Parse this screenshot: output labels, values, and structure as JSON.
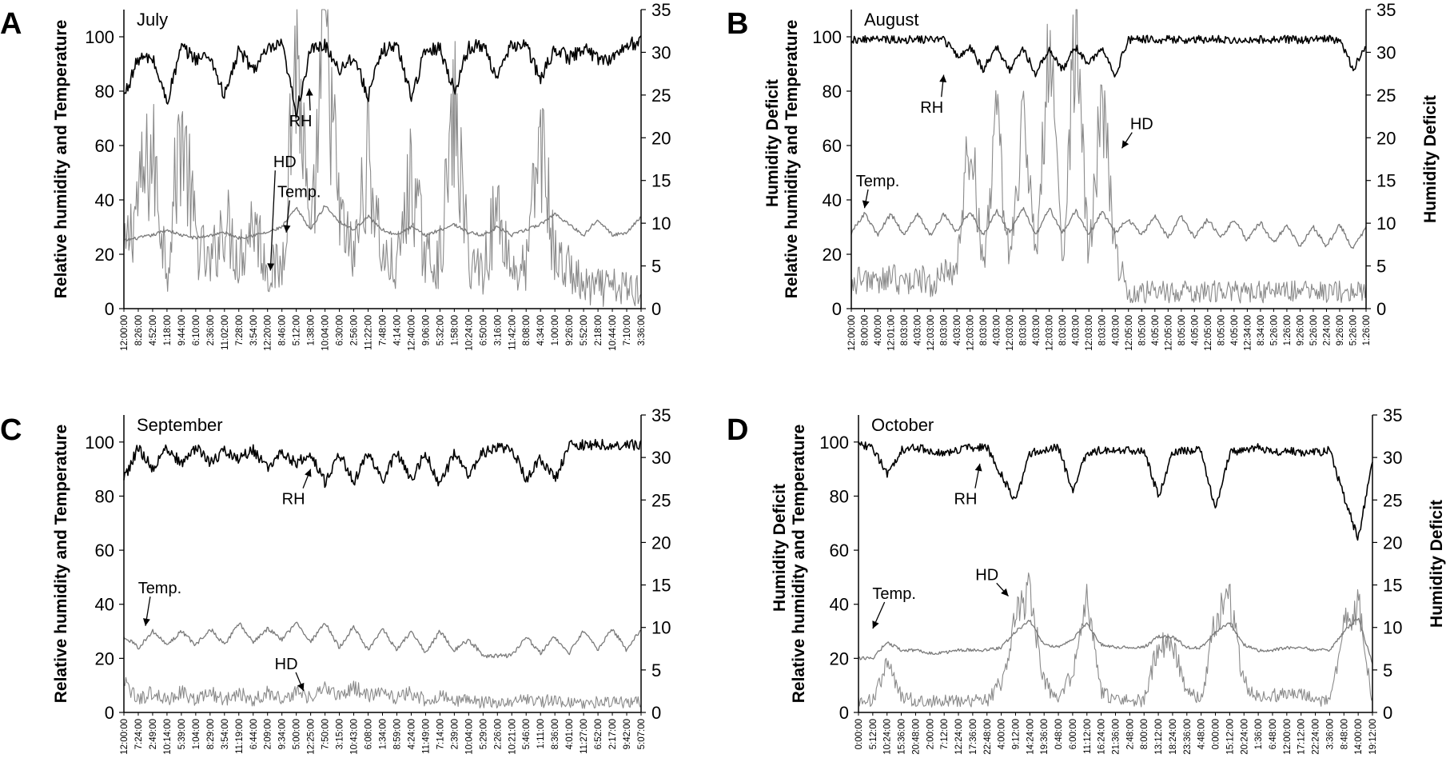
{
  "colors": {
    "rh": "#000000",
    "temp": "#7a7a7a",
    "hd": "#8a8a8a",
    "axis": "#000000"
  },
  "chart_data": [
    {
      "type": "line",
      "panel_letter": "A",
      "title": "July",
      "ylabel": "Relative humidity and Temperature",
      "y2label": "",
      "ylim": [
        0,
        110
      ],
      "y2lim": [
        0,
        35
      ],
      "yticks": [
        "0",
        "20",
        "40",
        "60",
        "80",
        "100"
      ],
      "y2ticks": [
        "0",
        "5",
        "10",
        "15",
        "20",
        "25",
        "30",
        "35"
      ],
      "x_labels": [
        "12:00:00",
        "8:26:00",
        "4:52:00",
        "1:18:00",
        "9:44:00",
        "6:10:00",
        "2:36:00",
        "11:02:00",
        "7:28:00",
        "3:54:00",
        "12:20:00",
        "8:46:00",
        "5:12:00",
        "1:38:00",
        "10:04:00",
        "6:30:00",
        "2:56:00",
        "11:22:00",
        "7:48:00",
        "4:14:00",
        "12:40:00",
        "9:06:00",
        "5:32:00",
        "1:58:00",
        "10:24:00",
        "6:50:00",
        "3:16:00",
        "11:42:00",
        "8:08:00",
        "4:34:00",
        "1:00:00",
        "9:26:00",
        "5:52:00",
        "2:18:00",
        "10:44:00",
        "7:10:00",
        "3:36:00"
      ],
      "annotations": [
        {
          "text": "RH",
          "x": 12.3,
          "y": 67,
          "arrow_x": 12.9,
          "arrow_y": 81
        },
        {
          "text": "HD",
          "x": 11.2,
          "y": 52,
          "arrow_x": 10.2,
          "arrow_y": 14
        },
        {
          "text": "Temp.",
          "x": 12.2,
          "y": 41,
          "arrow_x": 11.3,
          "arrow_y": 28
        }
      ],
      "series": [
        {
          "name": "RH",
          "axis": "left",
          "base": [
            78,
            92,
            92,
            76,
            96,
            92,
            93,
            78,
            95,
            88,
            95,
            97,
            72,
            95,
            97,
            88,
            93,
            78,
            95,
            97,
            78,
            95,
            96,
            80,
            96,
            97,
            85,
            97,
            97,
            84,
            96,
            92,
            96,
            92,
            92,
            97,
            98
          ],
          "noise": 2.5
        },
        {
          "name": "Temp.",
          "axis": "left",
          "base": [
            25,
            26,
            27,
            29,
            27,
            26,
            27,
            28,
            26,
            27,
            28,
            30,
            37,
            29,
            38,
            32,
            29,
            34,
            29,
            27,
            30,
            27,
            29,
            31,
            28,
            27,
            30,
            27,
            29,
            31,
            35,
            31,
            27,
            33,
            27,
            28,
            34
          ],
          "noise": 0.6
        },
        {
          "name": "HD",
          "axis": "right",
          "base": [
            4,
            10,
            14,
            3,
            17,
            6,
            3,
            8,
            4,
            8,
            3,
            3,
            25,
            4,
            27,
            8,
            4,
            14,
            4,
            3,
            12,
            4,
            4,
            18,
            4,
            3,
            9,
            3,
            3,
            16,
            4,
            3,
            1.2,
            1.2,
            1.2,
            1.2,
            1.2
          ],
          "noise": 4.5
        }
      ]
    },
    {
      "type": "line",
      "panel_letter": "B",
      "title": "August",
      "ylabel": "Relative humidity and Temperature",
      "ylabel2": "Humidity Deficit",
      "y2label": "Humidity Deficit",
      "ylim": [
        0,
        110
      ],
      "y2lim": [
        0,
        35
      ],
      "yticks": [
        "0",
        "20",
        "40",
        "60",
        "80",
        "100"
      ],
      "y2ticks": [
        "0",
        "5",
        "10",
        "15",
        "20",
        "25",
        "30",
        "35"
      ],
      "x_labels": [
        "12:00:00",
        "8:00:00",
        "4:00:00",
        "12:01:00",
        "8:03:00",
        "4:03:00",
        "12:03:00",
        "8:03:00",
        "4:03:00",
        "12:03:00",
        "8:03:00",
        "4:03:00",
        "12:03:00",
        "8:03:00",
        "4:03:00",
        "12:03:00",
        "8:03:00",
        "4:03:00",
        "12:03:00",
        "8:03:00",
        "4:03:00",
        "12:05:00",
        "8:05:00",
        "4:05:00",
        "12:05:00",
        "8:05:00",
        "4:05:00",
        "12:05:00",
        "8:05:00",
        "4:05:00",
        "12:34:00",
        "8:34:00",
        "5:26:00",
        "1:26:00",
        "9:26:00",
        "5:26:00",
        "2:24:00",
        "9:26:00",
        "5:26:00",
        "1:26:00"
      ],
      "annotations": [
        {
          "text": "RH",
          "x": 6.1,
          "y": 72,
          "arrow_x": 7.0,
          "arrow_y": 86
        },
        {
          "text": "HD",
          "x": 22.0,
          "y": 66,
          "arrow_x": 20.5,
          "arrow_y": 59
        },
        {
          "text": "Temp.",
          "x": 2.0,
          "y": 45,
          "arrow_x": 1.0,
          "arrow_y": 37
        }
      ],
      "series": [
        {
          "name": "RH",
          "axis": "left",
          "base": [
            99,
            99,
            99,
            99,
            99,
            99,
            99,
            99,
            93,
            96,
            88,
            96,
            88,
            96,
            86,
            96,
            88,
            96,
            90,
            96,
            86,
            99,
            99,
            99,
            99,
            99,
            99,
            99,
            99,
            99,
            99,
            99,
            99,
            99,
            99,
            99,
            99,
            99,
            88,
            96
          ],
          "noise": 1.5
        },
        {
          "name": "Temp.",
          "axis": "left",
          "base": [
            28,
            35,
            27,
            35,
            27,
            35,
            27,
            35,
            28,
            36,
            27,
            36,
            28,
            37,
            27,
            37,
            28,
            36,
            27,
            36,
            28,
            33,
            27,
            34,
            26,
            34,
            26,
            33,
            26,
            33,
            25,
            32,
            24,
            31,
            23,
            30,
            23,
            31,
            22,
            30
          ],
          "noise": 0.8
        },
        {
          "name": "HD",
          "axis": "right",
          "base": [
            2,
            3,
            2,
            3,
            2,
            3,
            2,
            3,
            4,
            18,
            4,
            19,
            4,
            20,
            4,
            28,
            4,
            29,
            4,
            22,
            5,
            1.3,
            1.3,
            1.3,
            1.3,
            1.3,
            1.3,
            1.3,
            1.3,
            1.3,
            1.3,
            1.3,
            1.3,
            1.3,
            1.3,
            1.3,
            1.3,
            1.3,
            1.3,
            1.3
          ],
          "noise": 2.5
        }
      ]
    },
    {
      "type": "line",
      "panel_letter": "C",
      "title": "September",
      "ylabel": "Relative humidity and Temperature",
      "y2label": "",
      "ylim": [
        0,
        110
      ],
      "y2lim": [
        0,
        35
      ],
      "yticks": [
        "0",
        "20",
        "40",
        "60",
        "80",
        "100"
      ],
      "y2ticks": [
        "0",
        "5",
        "10",
        "15",
        "20",
        "25",
        "30",
        "35"
      ],
      "x_labels": [
        "12:00:00",
        "7:24:00",
        "2:49:00",
        "10:14:00",
        "5:39:00",
        "1:04:00",
        "8:29:00",
        "3:54:00",
        "11:19:00",
        "6:44:00",
        "2:09:00",
        "9:34:00",
        "5:00:00",
        "12:25:00",
        "7:50:00",
        "3:15:00",
        "10:43:00",
        "6:08:00",
        "1:34:00",
        "8:59:00",
        "4:24:00",
        "11:49:00",
        "7:14:00",
        "2:39:00",
        "10:04:00",
        "5:29:00",
        "2:26:00",
        "10:21:00",
        "5:46:00",
        "1:11:00",
        "8:36:00",
        "4:01:00",
        "11:27:00",
        "6:52:00",
        "2:17:00",
        "9:42:00",
        "5:07:00"
      ],
      "annotations": [
        {
          "text": "RH",
          "x": 11.8,
          "y": 77,
          "arrow_x": 13.0,
          "arrow_y": 90
        },
        {
          "text": "HD",
          "x": 11.3,
          "y": 16,
          "arrow_x": 12.5,
          "arrow_y": 8
        },
        {
          "text": "Temp.",
          "x": 2.5,
          "y": 44,
          "arrow_x": 1.5,
          "arrow_y": 32
        }
      ],
      "series": [
        {
          "name": "RH",
          "axis": "left",
          "base": [
            86,
            98,
            90,
            98,
            92,
            98,
            92,
            97,
            94,
            97,
            90,
            96,
            92,
            96,
            85,
            96,
            85,
            96,
            86,
            96,
            86,
            96,
            84,
            96,
            88,
            96,
            98,
            98,
            86,
            94,
            86,
            99,
            99,
            99,
            99,
            99,
            99
          ],
          "noise": 2
        },
        {
          "name": "Temp.",
          "axis": "left",
          "base": [
            28,
            24,
            30,
            25,
            30,
            25,
            31,
            25,
            33,
            26,
            31,
            27,
            33,
            26,
            33,
            24,
            32,
            23,
            31,
            23,
            30,
            22,
            30,
            23,
            27,
            21,
            21,
            21,
            28,
            22,
            28,
            22,
            30,
            23,
            31,
            23,
            31
          ],
          "noise": 0.8
        },
        {
          "name": "HD",
          "axis": "right",
          "base": [
            3,
            1,
            2,
            1,
            2,
            1,
            2,
            1,
            2,
            1,
            2,
            1.2,
            2,
            1.2,
            2.5,
            1.5,
            2.5,
            1.5,
            2,
            1.2,
            2,
            1,
            1.5,
            1,
            1.2,
            0.8,
            0.8,
            0.8,
            1.2,
            0.8,
            1.2,
            0.8,
            0.8,
            0.8,
            0.8,
            0.8,
            0.8
          ],
          "noise": 1.5
        }
      ]
    },
    {
      "type": "line",
      "panel_letter": "D",
      "title": "October",
      "ylabel": "Relative humidity and Temperature",
      "ylabel2": "Humidity Deficit",
      "y2label": "Humidity Deficit",
      "ylim": [
        0,
        110
      ],
      "y2lim": [
        0,
        35
      ],
      "yticks": [
        "0",
        "20",
        "40",
        "60",
        "80",
        "100"
      ],
      "y2ticks": [
        "0",
        "5",
        "10",
        "15",
        "20",
        "25",
        "30",
        "35"
      ],
      "x_labels": [
        "0:00:00",
        "5:12:00",
        "10:24:00",
        "15:36:00",
        "20:48:00",
        "2:00:00",
        "7:12:00",
        "12:24:00",
        "17:36:00",
        "22:48:00",
        "4:00:00",
        "9:12:00",
        "14:24:00",
        "19:36:00",
        "0:48:00",
        "6:00:00",
        "11:12:00",
        "16:24:00",
        "21:36:00",
        "2:48:00",
        "8:00:00",
        "13:12:00",
        "18:24:00",
        "23:36:00",
        "4:48:00",
        "0:00:00",
        "15:12:00",
        "20:24:00",
        "1:36:00",
        "6:48:00",
        "12:00:00",
        "17:12:00",
        "22:24:00",
        "3:36:00",
        "8:48:00",
        "14:00:00",
        "19:12:00"
      ],
      "annotations": [
        {
          "text": "RH",
          "x": 7.5,
          "y": 77,
          "arrow_x": 8.5,
          "arrow_y": 92
        },
        {
          "text": "HD",
          "x": 9.0,
          "y": 49,
          "arrow_x": 10.5,
          "arrow_y": 43
        },
        {
          "text": "Temp.",
          "x": 2.5,
          "y": 42,
          "arrow_x": 1.0,
          "arrow_y": 31
        }
      ],
      "series": [
        {
          "name": "RH",
          "axis": "left",
          "base": [
            99,
            98,
            88,
            97,
            98,
            97,
            96,
            97,
            98,
            98,
            88,
            78,
            96,
            97,
            98,
            82,
            96,
            97,
            97,
            97,
            97,
            80,
            96,
            97,
            97,
            75,
            96,
            97,
            98,
            96,
            97,
            96,
            96,
            97,
            80,
            64,
            93
          ],
          "noise": 1.5
        },
        {
          "name": "Temp.",
          "axis": "left",
          "base": [
            20,
            20,
            26,
            23,
            23,
            22,
            22,
            23,
            23,
            23,
            24,
            30,
            34,
            25,
            24,
            27,
            33,
            25,
            24,
            24,
            24,
            28,
            28,
            24,
            24,
            30,
            33,
            25,
            23,
            23,
            24,
            24,
            23,
            23,
            30,
            35,
            18
          ],
          "noise": 0.6
        },
        {
          "name": "HD",
          "axis": "right",
          "base": [
            1,
            1,
            5,
            1.5,
            1,
            1,
            1,
            1,
            1,
            1,
            3,
            10,
            13,
            3,
            1,
            4,
            12,
            2,
            1,
            1,
            1,
            7,
            7,
            2,
            1,
            10,
            12,
            3,
            1.5,
            1.5,
            2,
            2,
            1,
            1,
            9,
            12,
            1
          ],
          "noise": 1.5
        }
      ]
    }
  ]
}
